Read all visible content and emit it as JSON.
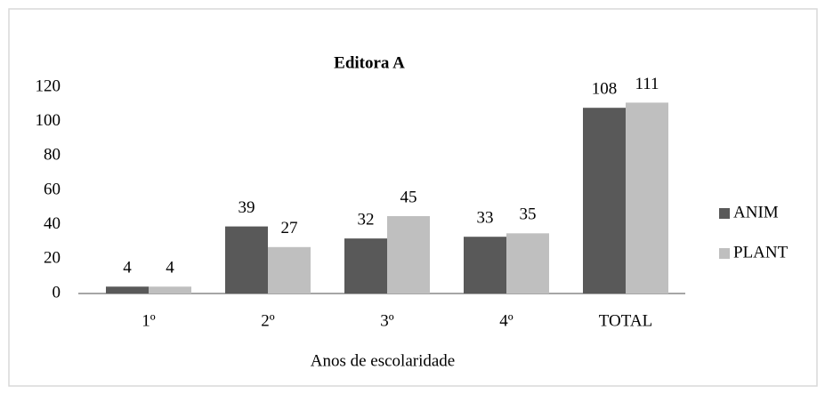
{
  "chart_data": {
    "type": "bar",
    "title": "Editora A",
    "categories": [
      "1º",
      "2º",
      "3º",
      "4º",
      "TOTAL"
    ],
    "series": [
      {
        "name": "ANIM",
        "color": "#595959",
        "values": [
          4,
          39,
          32,
          33,
          108
        ]
      },
      {
        "name": "PLANT",
        "color": "#bfbfbf",
        "values": [
          4,
          27,
          45,
          35,
          111
        ]
      }
    ],
    "x_label": "Anos de escolaridade",
    "ylim": [
      0,
      120
    ],
    "yticks": [
      0,
      20,
      40,
      60,
      80,
      100,
      120
    ],
    "grid": false,
    "legend": "right"
  }
}
